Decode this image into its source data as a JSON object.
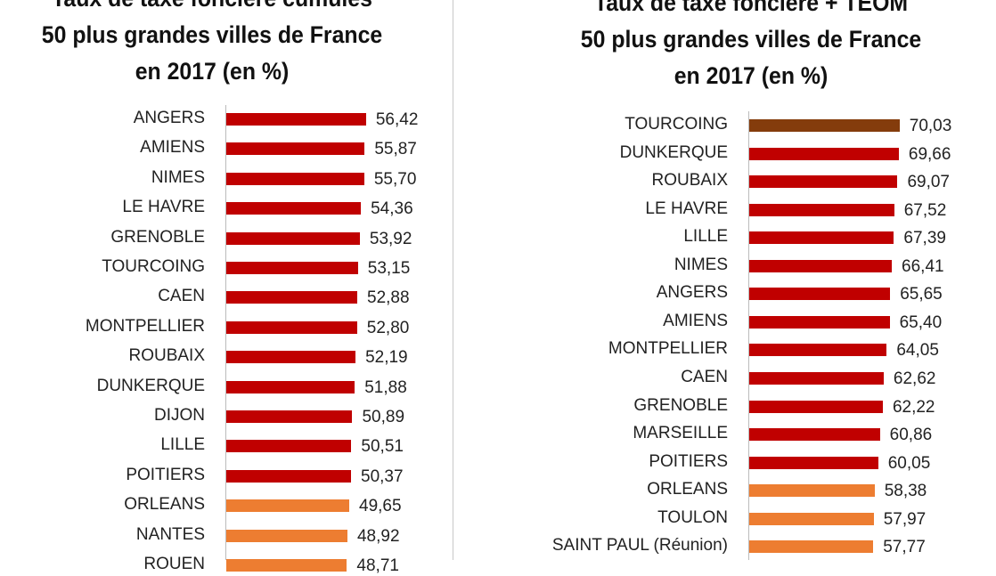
{
  "colors": {
    "above": "#c00000",
    "below": "#ed7d31",
    "top": "#843c0c"
  },
  "chart_data": [
    {
      "type": "bar",
      "orientation": "horizontal",
      "title": [
        "Taux de taxe foncière cumulés",
        "50 plus grandes villes de France",
        "en 2017 (en %)"
      ],
      "categories": [
        "ANGERS",
        "AMIENS",
        "NIMES",
        "LE HAVRE",
        "GRENOBLE",
        "TOURCOING",
        "CAEN",
        "MONTPELLIER",
        "ROUBAIX",
        "DUNKERQUE",
        "DIJON",
        "LILLE",
        "POITIERS",
        "ORLEANS",
        "NANTES",
        "ROUEN"
      ],
      "values": [
        56.42,
        55.87,
        55.7,
        54.36,
        53.92,
        53.15,
        52.88,
        52.8,
        52.19,
        51.88,
        50.89,
        50.51,
        50.37,
        49.65,
        48.92,
        48.71
      ],
      "labels": [
        "56,42",
        "55,87",
        "55,70",
        "54,36",
        "53,92",
        "53,15",
        "52,88",
        "52,80",
        "52,19",
        "51,88",
        "50,89",
        "50,51",
        "50,37",
        "49,65",
        "48,92",
        "48,71"
      ],
      "color_groups": [
        "above",
        "above",
        "above",
        "above",
        "above",
        "above",
        "above",
        "above",
        "above",
        "above",
        "above",
        "above",
        "above",
        "below",
        "below",
        "below"
      ],
      "xlim": [
        0,
        60
      ]
    },
    {
      "type": "bar",
      "orientation": "horizontal",
      "title": [
        "Taux de taxe foncière + TEOM",
        "50 plus grandes villes de France",
        "en 2017 (en %)"
      ],
      "categories": [
        "TOURCOING",
        "DUNKERQUE",
        "ROUBAIX",
        "LE HAVRE",
        "LILLE",
        "NIMES",
        "ANGERS",
        "AMIENS",
        "MONTPELLIER",
        "CAEN",
        "GRENOBLE",
        "MARSEILLE",
        "POITIERS",
        "ORLEANS",
        "TOULON",
        "SAINT PAUL (Réunion)"
      ],
      "values": [
        70.03,
        69.66,
        69.07,
        67.52,
        67.39,
        66.41,
        65.65,
        65.4,
        64.05,
        62.62,
        62.22,
        60.86,
        60.05,
        58.38,
        57.97,
        57.77
      ],
      "labels": [
        "70,03",
        "69,66",
        "69,07",
        "67,52",
        "67,39",
        "66,41",
        "65,65",
        "65,40",
        "64,05",
        "62,62",
        "62,22",
        "60,86",
        "60,05",
        "58,38",
        "57,97",
        "57,77"
      ],
      "color_groups": [
        "top",
        "above",
        "above",
        "above",
        "above",
        "above",
        "above",
        "above",
        "above",
        "above",
        "above",
        "above",
        "above",
        "below",
        "below",
        "below"
      ],
      "xlim": [
        0,
        75
      ]
    }
  ]
}
